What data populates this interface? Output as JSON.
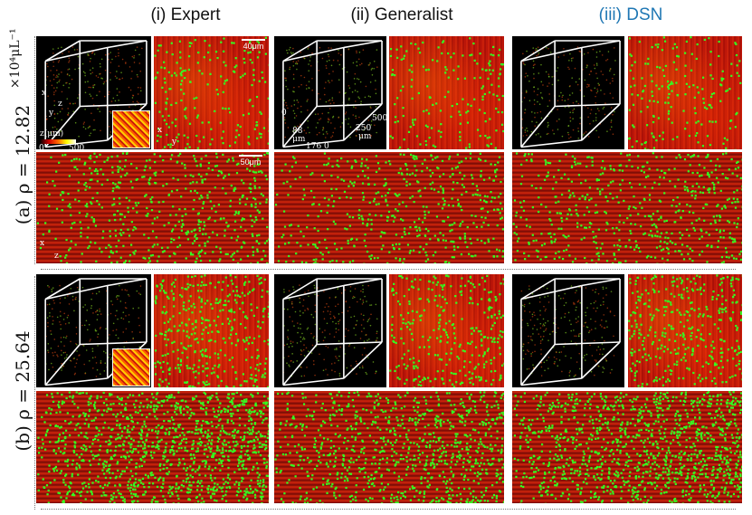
{
  "columns": [
    {
      "label": "(i) Expert",
      "color": "#111111"
    },
    {
      "label": "(ii) Generalist",
      "color": "#111111"
    },
    {
      "label": "(iii) DSN",
      "color": "#1f77b4"
    }
  ],
  "rows": [
    {
      "label": "(a) ρ = 12.82"
    },
    {
      "label": "(b) ρ = 25.64"
    }
  ],
  "unit": "×10⁴μL⁻¹",
  "annotations": {
    "scale_top": "40μm",
    "scale_side": "50μm",
    "axis_x": "x",
    "axis_y": "y",
    "axis_z": "z",
    "colorbar_label": "z(μm)",
    "colorbar_min": "0",
    "colorbar_max": "500",
    "dim_88": "88",
    "dim_um1": "μm",
    "dim_176": "176",
    "dim_0a": "0",
    "dim_0b": "0",
    "dim_250": "250",
    "dim_um2": "μm",
    "dim_500": "500"
  },
  "colors": {
    "neuron_green": "#33ff22",
    "background_red": "#c81a0a"
  }
}
